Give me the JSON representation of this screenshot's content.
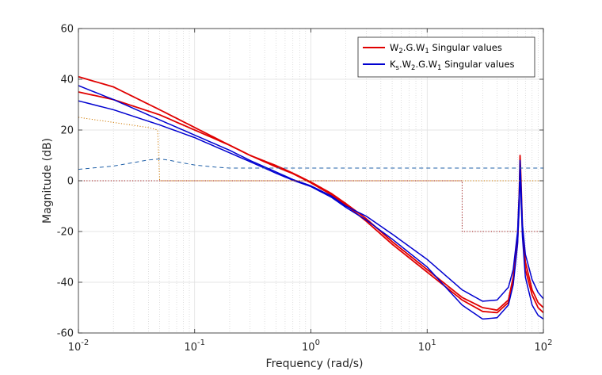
{
  "chart_data": {
    "type": "line",
    "title": "",
    "xlabel": "Frequency (rad/s)",
    "ylabel": "Magnitude (dB)",
    "xscale": "log",
    "xlim": [
      0.01,
      100
    ],
    "ylim": [
      -60,
      60
    ],
    "grid": true,
    "minor_grid": true,
    "legend_position": "top-right",
    "x_ticks": [
      {
        "base": "10",
        "exp": "-2",
        "value": 0.01
      },
      {
        "base": "10",
        "exp": "-1",
        "value": 0.1
      },
      {
        "base": "10",
        "exp": "0",
        "value": 1
      },
      {
        "base": "10",
        "exp": "1",
        "value": 10
      },
      {
        "base": "10",
        "exp": "2",
        "value": 100
      }
    ],
    "y_ticks": [
      {
        "label": "60",
        "value": 60
      },
      {
        "label": "40",
        "value": 40
      },
      {
        "label": "20",
        "value": 20
      },
      {
        "label": "0",
        "value": 0
      },
      {
        "label": "-20",
        "value": -20
      },
      {
        "label": "-40",
        "value": -40
      },
      {
        "label": "-60",
        "value": -60
      }
    ],
    "legend": [
      {
        "color": "#e00000",
        "parts": [
          {
            "t": "W",
            "sub": false
          },
          {
            "t": "2",
            "sub": true
          },
          {
            "t": ".G.W",
            "sub": false
          },
          {
            "t": "1",
            "sub": true
          },
          {
            "t": " Singular values",
            "sub": false
          }
        ]
      },
      {
        "color": "#0000d0",
        "parts": [
          {
            "t": "K",
            "sub": false
          },
          {
            "t": "s",
            "sub": true
          },
          {
            "t": ".W",
            "sub": false
          },
          {
            "t": "2",
            "sub": true
          },
          {
            "t": ".G.W",
            "sub": false
          },
          {
            "t": "1",
            "sub": true
          },
          {
            "t": " Singular values",
            "sub": false
          }
        ]
      }
    ],
    "series": [
      {
        "key": "w2gw1_sv1",
        "color": "#e00000",
        "width": 1.8,
        "dash": "",
        "points": [
          [
            0.01,
            41
          ],
          [
            0.02,
            37
          ],
          [
            0.05,
            28
          ],
          [
            0.1,
            21
          ],
          [
            0.2,
            14
          ],
          [
            0.3,
            10
          ],
          [
            0.5,
            6
          ],
          [
            0.7,
            3
          ],
          [
            1,
            -0.5
          ],
          [
            1.5,
            -5
          ],
          [
            2,
            -9
          ],
          [
            3,
            -15
          ],
          [
            5,
            -24
          ],
          [
            10,
            -35
          ],
          [
            20,
            -46
          ],
          [
            30,
            -50
          ],
          [
            40,
            -51
          ],
          [
            50,
            -47
          ],
          [
            55,
            -38
          ],
          [
            60,
            -22
          ],
          [
            62,
            -5
          ],
          [
            63,
            10
          ],
          [
            64,
            2
          ],
          [
            66,
            -18
          ],
          [
            70,
            -32
          ],
          [
            80,
            -43
          ],
          [
            90,
            -48
          ],
          [
            100,
            -50
          ]
        ]
      },
      {
        "key": "w2gw1_sv2",
        "color": "#e00000",
        "width": 1.8,
        "dash": "",
        "points": [
          [
            0.01,
            35
          ],
          [
            0.02,
            32
          ],
          [
            0.05,
            26
          ],
          [
            0.1,
            20
          ],
          [
            0.2,
            14
          ],
          [
            0.3,
            10
          ],
          [
            0.5,
            5.5
          ],
          [
            0.7,
            2.8
          ],
          [
            1,
            -0.8
          ],
          [
            1.5,
            -5.5
          ],
          [
            2,
            -9.5
          ],
          [
            3,
            -16
          ],
          [
            5,
            -25
          ],
          [
            10,
            -36
          ],
          [
            20,
            -47
          ],
          [
            30,
            -51.5
          ],
          [
            40,
            -52
          ],
          [
            50,
            -48
          ],
          [
            55,
            -40
          ],
          [
            60,
            -24
          ],
          [
            62,
            -8
          ],
          [
            63,
            5
          ],
          [
            64,
            -2
          ],
          [
            66,
            -20
          ],
          [
            70,
            -35
          ],
          [
            80,
            -45
          ],
          [
            90,
            -50
          ],
          [
            100,
            -52
          ]
        ]
      },
      {
        "key": "ksw2gw1_sv1",
        "color": "#0000d0",
        "width": 1.5,
        "dash": "",
        "points": [
          [
            0.01,
            37.5
          ],
          [
            0.02,
            32
          ],
          [
            0.05,
            24
          ],
          [
            0.1,
            18
          ],
          [
            0.2,
            12
          ],
          [
            0.3,
            8
          ],
          [
            0.5,
            3.5
          ],
          [
            0.7,
            0.5
          ],
          [
            1,
            -2
          ],
          [
            1.5,
            -6
          ],
          [
            2,
            -10
          ],
          [
            3,
            -14
          ],
          [
            5,
            -21
          ],
          [
            10,
            -31
          ],
          [
            20,
            -43
          ],
          [
            30,
            -47.5
          ],
          [
            40,
            -47
          ],
          [
            50,
            -42
          ],
          [
            55,
            -35
          ],
          [
            60,
            -20
          ],
          [
            62,
            -5
          ],
          [
            63,
            8
          ],
          [
            64,
            0
          ],
          [
            66,
            -17
          ],
          [
            70,
            -29
          ],
          [
            80,
            -39
          ],
          [
            90,
            -44
          ],
          [
            100,
            -46.5
          ]
        ]
      },
      {
        "key": "ksw2gw1_sv2",
        "color": "#0000d0",
        "width": 1.5,
        "dash": "",
        "points": [
          [
            0.01,
            31.5
          ],
          [
            0.02,
            28
          ],
          [
            0.05,
            22
          ],
          [
            0.1,
            17
          ],
          [
            0.2,
            11
          ],
          [
            0.3,
            7.5
          ],
          [
            0.5,
            3
          ],
          [
            0.7,
            0.2
          ],
          [
            1,
            -2.3
          ],
          [
            1.5,
            -6.5
          ],
          [
            2,
            -10.5
          ],
          [
            3,
            -15.5
          ],
          [
            5,
            -23
          ],
          [
            10,
            -34
          ],
          [
            20,
            -49
          ],
          [
            30,
            -54.5
          ],
          [
            40,
            -54
          ],
          [
            50,
            -49
          ],
          [
            55,
            -41
          ],
          [
            60,
            -25
          ],
          [
            62,
            -10
          ],
          [
            63,
            4
          ],
          [
            64,
            -4
          ],
          [
            66,
            -22
          ],
          [
            70,
            -38
          ],
          [
            80,
            -49
          ],
          [
            90,
            -53
          ],
          [
            100,
            -54.5
          ]
        ]
      },
      {
        "key": "ks_weight_1",
        "color": "#d07a00",
        "width": 1,
        "dash": "1.2,2.2",
        "points": [
          [
            0.01,
            25
          ],
          [
            0.02,
            23
          ],
          [
            0.04,
            21
          ],
          [
            0.048,
            20
          ],
          [
            0.049,
            10
          ],
          [
            0.05,
            0
          ],
          [
            20,
            0
          ],
          [
            100,
            0
          ]
        ]
      },
      {
        "key": "ks_weight_2",
        "color": "#2060a8",
        "width": 1,
        "dash": "5,4",
        "points": [
          [
            0.01,
            4.5
          ],
          [
            0.02,
            5.8
          ],
          [
            0.03,
            7.2
          ],
          [
            0.04,
            8.2
          ],
          [
            0.05,
            8.6
          ],
          [
            0.06,
            8.1
          ],
          [
            0.08,
            7
          ],
          [
            0.1,
            6.2
          ],
          [
            0.15,
            5.4
          ],
          [
            0.2,
            5
          ],
          [
            0.5,
            5
          ],
          [
            1,
            5
          ],
          [
            10,
            5
          ],
          [
            100,
            5
          ]
        ]
      },
      {
        "key": "ks_weight_3",
        "color": "#a01818",
        "width": 1,
        "dash": "1.2,2.2",
        "points": [
          [
            0.01,
            0
          ],
          [
            20,
            0
          ],
          [
            20,
            -20
          ],
          [
            100,
            -20
          ]
        ]
      }
    ]
  }
}
